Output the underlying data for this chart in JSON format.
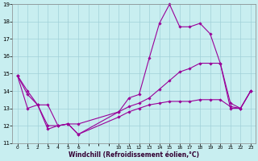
{
  "background_color": "#c8eef0",
  "grid_color": "#a0d0d8",
  "line_color": "#990099",
  "xlabel": "Windchill (Refroidissement éolien,°C)",
  "ylim": [
    11,
    19
  ],
  "xlim": [
    -0.5,
    23.5
  ],
  "yticks": [
    11,
    12,
    13,
    14,
    15,
    16,
    17,
    18,
    19
  ],
  "xticks": [
    0,
    1,
    2,
    3,
    4,
    5,
    6,
    10,
    11,
    12,
    13,
    14,
    15,
    16,
    17,
    18,
    19,
    20,
    21,
    22,
    23
  ],
  "line1_x": [
    0,
    1,
    2,
    3,
    4,
    5,
    6,
    10,
    11,
    12,
    13,
    14,
    15,
    16,
    17,
    18,
    19,
    20,
    21,
    22,
    23
  ],
  "line1_y": [
    14.9,
    14.0,
    13.2,
    11.8,
    12.0,
    12.1,
    11.5,
    12.8,
    13.6,
    13.8,
    15.9,
    17.9,
    19.0,
    17.7,
    17.7,
    17.9,
    17.3,
    15.6,
    13.0,
    13.0,
    14.0
  ],
  "line2_x": [
    0,
    1,
    2,
    3,
    4,
    5,
    6,
    10,
    11,
    12,
    13,
    14,
    15,
    16,
    17,
    18,
    19,
    20,
    21,
    22,
    23
  ],
  "line2_y": [
    14.9,
    13.8,
    13.2,
    13.2,
    12.0,
    12.1,
    12.1,
    12.8,
    13.1,
    13.3,
    13.6,
    14.1,
    14.6,
    15.1,
    15.3,
    15.6,
    15.6,
    15.6,
    13.3,
    13.0,
    14.0
  ],
  "line3_x": [
    0,
    1,
    2,
    3,
    4,
    5,
    6,
    10,
    11,
    12,
    13,
    14,
    15,
    16,
    17,
    18,
    19,
    20,
    21,
    22,
    23
  ],
  "line3_y": [
    14.9,
    13.0,
    13.2,
    12.0,
    12.0,
    12.1,
    11.5,
    12.5,
    12.8,
    13.0,
    13.2,
    13.3,
    13.4,
    13.4,
    13.4,
    13.5,
    13.5,
    13.5,
    13.1,
    13.0,
    14.0
  ]
}
